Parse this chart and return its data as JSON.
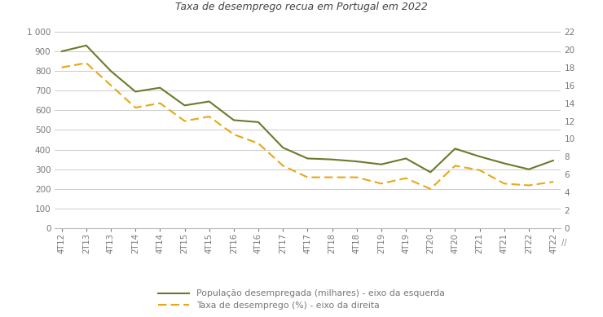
{
  "title": "Taxa de desemprego recua em Portugal em 2022",
  "x_labels": [
    "4T12",
    "2T13",
    "4T13",
    "2T14",
    "4T14",
    "2T15",
    "4T15",
    "2T16",
    "4T16",
    "2T17",
    "4T17",
    "2T18",
    "4T18",
    "2T19",
    "4T19",
    "2T20",
    "4T20",
    "2T21",
    "4T21",
    "2T22",
    "4T22"
  ],
  "pop_desempregada": [
    900,
    930,
    800,
    695,
    715,
    625,
    645,
    550,
    540,
    410,
    355,
    350,
    340,
    325,
    355,
    285,
    405,
    365,
    330,
    300,
    345
  ],
  "taxa_desemprego": [
    18.0,
    18.5,
    16.0,
    13.5,
    14.0,
    12.0,
    12.5,
    10.5,
    9.5,
    7.0,
    5.7,
    5.7,
    5.7,
    5.0,
    5.6,
    4.4,
    7.0,
    6.5,
    5.0,
    4.8,
    5.2
  ],
  "left_color": "#6b7a2a",
  "right_color": "#e6a817",
  "left_ylim": [
    0,
    1000
  ],
  "right_ylim": [
    0,
    22
  ],
  "left_yticks": [
    0,
    100,
    200,
    300,
    400,
    500,
    600,
    700,
    800,
    900,
    1000
  ],
  "right_yticks": [
    0,
    2,
    4,
    6,
    8,
    10,
    12,
    14,
    16,
    18,
    20,
    22
  ],
  "legend_left": "População desempregada (milhares) - eixo da esquerda",
  "legend_right": "Taxa de desemprego (%) - eixo da direita",
  "bg_color": "#ffffff",
  "grid_color": "#cccccc",
  "tick_color": "#777777",
  "title_color": "#555555"
}
